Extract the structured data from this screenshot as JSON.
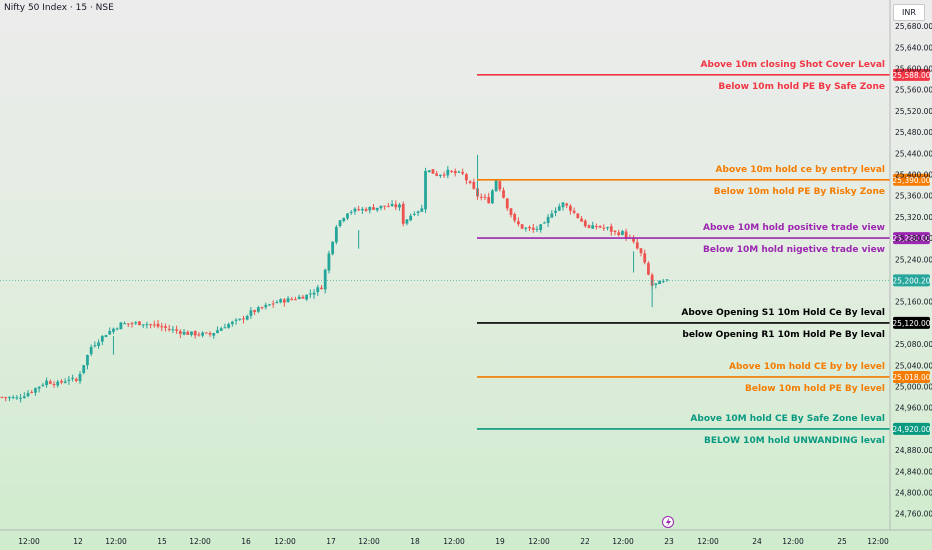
{
  "header": {
    "symbol": "Nifty 50 Index · 15 · NSE",
    "currency": "INR"
  },
  "colors": {
    "up": "#26a69a",
    "down": "#ef5350",
    "red_level": "#f23645",
    "orange_level": "#f57c00",
    "purple_level": "#9c27b0",
    "black_level": "#000000",
    "green_level": "#089981",
    "current_price": "#26a69a"
  },
  "footer": {
    "event_icon": "lightning-icon"
  },
  "chart_data": {
    "type": "candlestick",
    "y_ticks": [
      "25,680.00",
      "25,640.00",
      "25,600.00",
      "25,560.00",
      "25,520.00",
      "25,480.00",
      "25,440.00",
      "25,400.00",
      "25,360.00",
      "25,320.00",
      "25,280.00",
      "25,240.00",
      "25,160.00",
      "25,080.00",
      "25,040.00",
      "25,000.00",
      "24,960.00",
      "24,880.00",
      "24,840.00",
      "24,800.00",
      "24,760.00"
    ],
    "ylim": [
      24740,
      25700
    ],
    "x_ticks": [
      "12:00",
      "12",
      "12:00",
      "15",
      "12:00",
      "16",
      "12:00",
      "17",
      "12:00",
      "18",
      "12:00",
      "19",
      "12:00",
      "22",
      "12:00",
      "23",
      "12:00",
      "24",
      "12:00",
      "25",
      "12:00"
    ],
    "current_price": {
      "value": 25200.2,
      "label": "25,200.20"
    },
    "levels": [
      {
        "price": 25588,
        "badge": "25,588.00",
        "color": "red",
        "above": "Above 10m closing Shot Cover Leval",
        "below": "Below 10m hold PE By Safe Zone"
      },
      {
        "price": 25390,
        "badge": "25,390.00",
        "color": "orange",
        "above": "Above 10m hold ce by entry leval",
        "below": "Below 10m hold PE By Risky Zone"
      },
      {
        "price": 25280,
        "badge": "25,280.00",
        "color": "purple",
        "above": "Above 10M hold positive trade view",
        "below": "Below 10M hold nigetive trade view"
      },
      {
        "price": 25120,
        "badge": "25,120.00",
        "color": "black",
        "above": "Above Opening S1 10m Hold Ce By leval",
        "below": "below Opening R1 10m Hold Pe By leval"
      },
      {
        "price": 25018,
        "badge": "25,018.00",
        "color": "orange",
        "above": "Above 10m hold CE by by level",
        "below": "Below 10m hold PE By level"
      },
      {
        "price": 24920,
        "badge": "24,920.00",
        "color": "green",
        "above": "Above 10M hold CE By Safe Zone leval",
        "below": "BELOW 10M hold UNWANDING leval"
      }
    ],
    "waypoints": [
      [
        0,
        24980
      ],
      [
        4,
        24978
      ],
      [
        8,
        24992
      ],
      [
        12,
        25010
      ],
      [
        15,
        25005
      ],
      [
        18,
        25015
      ],
      [
        20,
        25010
      ],
      [
        24,
        25075
      ],
      [
        28,
        25100
      ],
      [
        32,
        25118
      ],
      [
        38,
        25120
      ],
      [
        44,
        25110
      ],
      [
        50,
        25100
      ],
      [
        56,
        25098
      ],
      [
        60,
        25115
      ],
      [
        64,
        25125
      ],
      [
        67,
        25140
      ],
      [
        70,
        25148
      ],
      [
        74,
        25160
      ],
      [
        78,
        25165
      ],
      [
        82,
        25172
      ],
      [
        86,
        25188
      ],
      [
        88,
        25250
      ],
      [
        90,
        25305
      ],
      [
        93,
        25330
      ],
      [
        98,
        25335
      ],
      [
        103,
        25340
      ],
      [
        107,
        25340
      ],
      [
        108,
        25310
      ],
      [
        111,
        25330
      ],
      [
        113,
        25335
      ],
      [
        114,
        25410
      ],
      [
        117,
        25400
      ],
      [
        120,
        25405
      ],
      [
        124,
        25400
      ],
      [
        126,
        25380
      ],
      [
        128,
        25360
      ],
      [
        131,
        25350
      ],
      [
        133,
        25390
      ],
      [
        134,
        25375
      ],
      [
        136,
        25340
      ],
      [
        138,
        25310
      ],
      [
        140,
        25300
      ],
      [
        143,
        25295
      ],
      [
        146,
        25305
      ],
      [
        148,
        25330
      ],
      [
        151,
        25345
      ],
      [
        153,
        25335
      ],
      [
        156,
        25312
      ],
      [
        158,
        25298
      ],
      [
        160,
        25302
      ],
      [
        163,
        25298
      ],
      [
        165,
        25290
      ],
      [
        167,
        25290
      ],
      [
        170,
        25270
      ],
      [
        172,
        25250
      ],
      [
        175,
        25190
      ],
      [
        177,
        25195
      ],
      [
        179,
        25198
      ]
    ]
  }
}
